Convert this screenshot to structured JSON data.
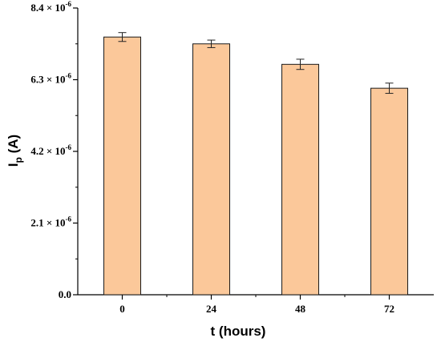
{
  "chart_data": {
    "type": "bar",
    "categories": [
      "0",
      "24",
      "48",
      "72"
    ],
    "values": [
      7.55e-06,
      7.35e-06,
      6.75e-06,
      6.05e-06
    ],
    "errors": [
      1.3e-07,
      1.1e-07,
      1.5e-07,
      1.5e-07
    ],
    "xlabel": "t (hours)",
    "ylabel_main": "I",
    "ylabel_sub": "p",
    "ylabel_unit": " (A)",
    "ylim": [
      0,
      8.4e-06
    ],
    "yticks": [
      {
        "value": 0,
        "mantissa": "0.0",
        "exp": ""
      },
      {
        "value": 2.1e-06,
        "mantissa": "2.1 × 10",
        "exp": "-6"
      },
      {
        "value": 4.2e-06,
        "mantissa": "4.2 × 10",
        "exp": "-6"
      },
      {
        "value": 6.3e-06,
        "mantissa": "6.3 × 10",
        "exp": "-6"
      },
      {
        "value": 8.4e-06,
        "mantissa": "8.4 × 10",
        "exp": "-6"
      }
    ],
    "bar_color": "#FBC89A",
    "bar_edge_color": "#1a1a1a",
    "grid": false
  }
}
